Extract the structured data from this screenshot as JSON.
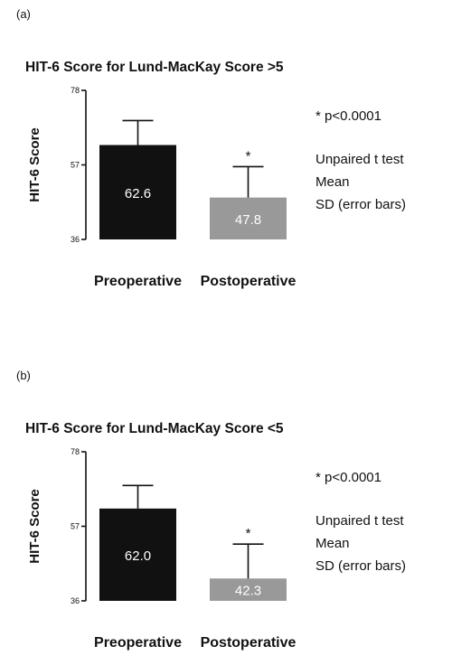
{
  "chart_data": [
    {
      "panel_label": "(a)",
      "type": "bar",
      "title": "HIT-6 Score for Lund-MacKay Score >5",
      "ylabel": "HIT-6 Score",
      "xlabel": "",
      "ylim": [
        36,
        78
      ],
      "yticks": [
        "36",
        "57",
        "78"
      ],
      "categories": [
        "Preoperative",
        "Postoperative"
      ],
      "values": [
        62.6,
        47.8
      ],
      "value_labels": [
        "62.6",
        "47.8"
      ],
      "sd_upper": [
        69.5,
        56.5
      ],
      "significance_marks": [
        "",
        "*"
      ],
      "bar_colors": [
        "#111111",
        "#999999"
      ],
      "annotations": [
        "* p<0.0001",
        "Unpaired t test",
        "Mean",
        "SD (error bars)"
      ],
      "grid": false,
      "legend": "none"
    },
    {
      "panel_label": "(b)",
      "type": "bar",
      "title": "HIT-6 Score for Lund-MacKay Score <5",
      "ylabel": "HIT-6 Score",
      "xlabel": "",
      "ylim": [
        36,
        78
      ],
      "yticks": [
        "36",
        "57",
        "78"
      ],
      "categories": [
        "Preoperative",
        "Postoperative"
      ],
      "values": [
        62.0,
        42.3
      ],
      "value_labels": [
        "62.0",
        "42.3"
      ],
      "sd_upper": [
        68.5,
        52.0
      ],
      "significance_marks": [
        "",
        "*"
      ],
      "bar_colors": [
        "#111111",
        "#999999"
      ],
      "annotations": [
        "* p<0.0001",
        "Unpaired t test",
        "Mean",
        "SD (error bars)"
      ],
      "grid": false,
      "legend": "none"
    }
  ]
}
